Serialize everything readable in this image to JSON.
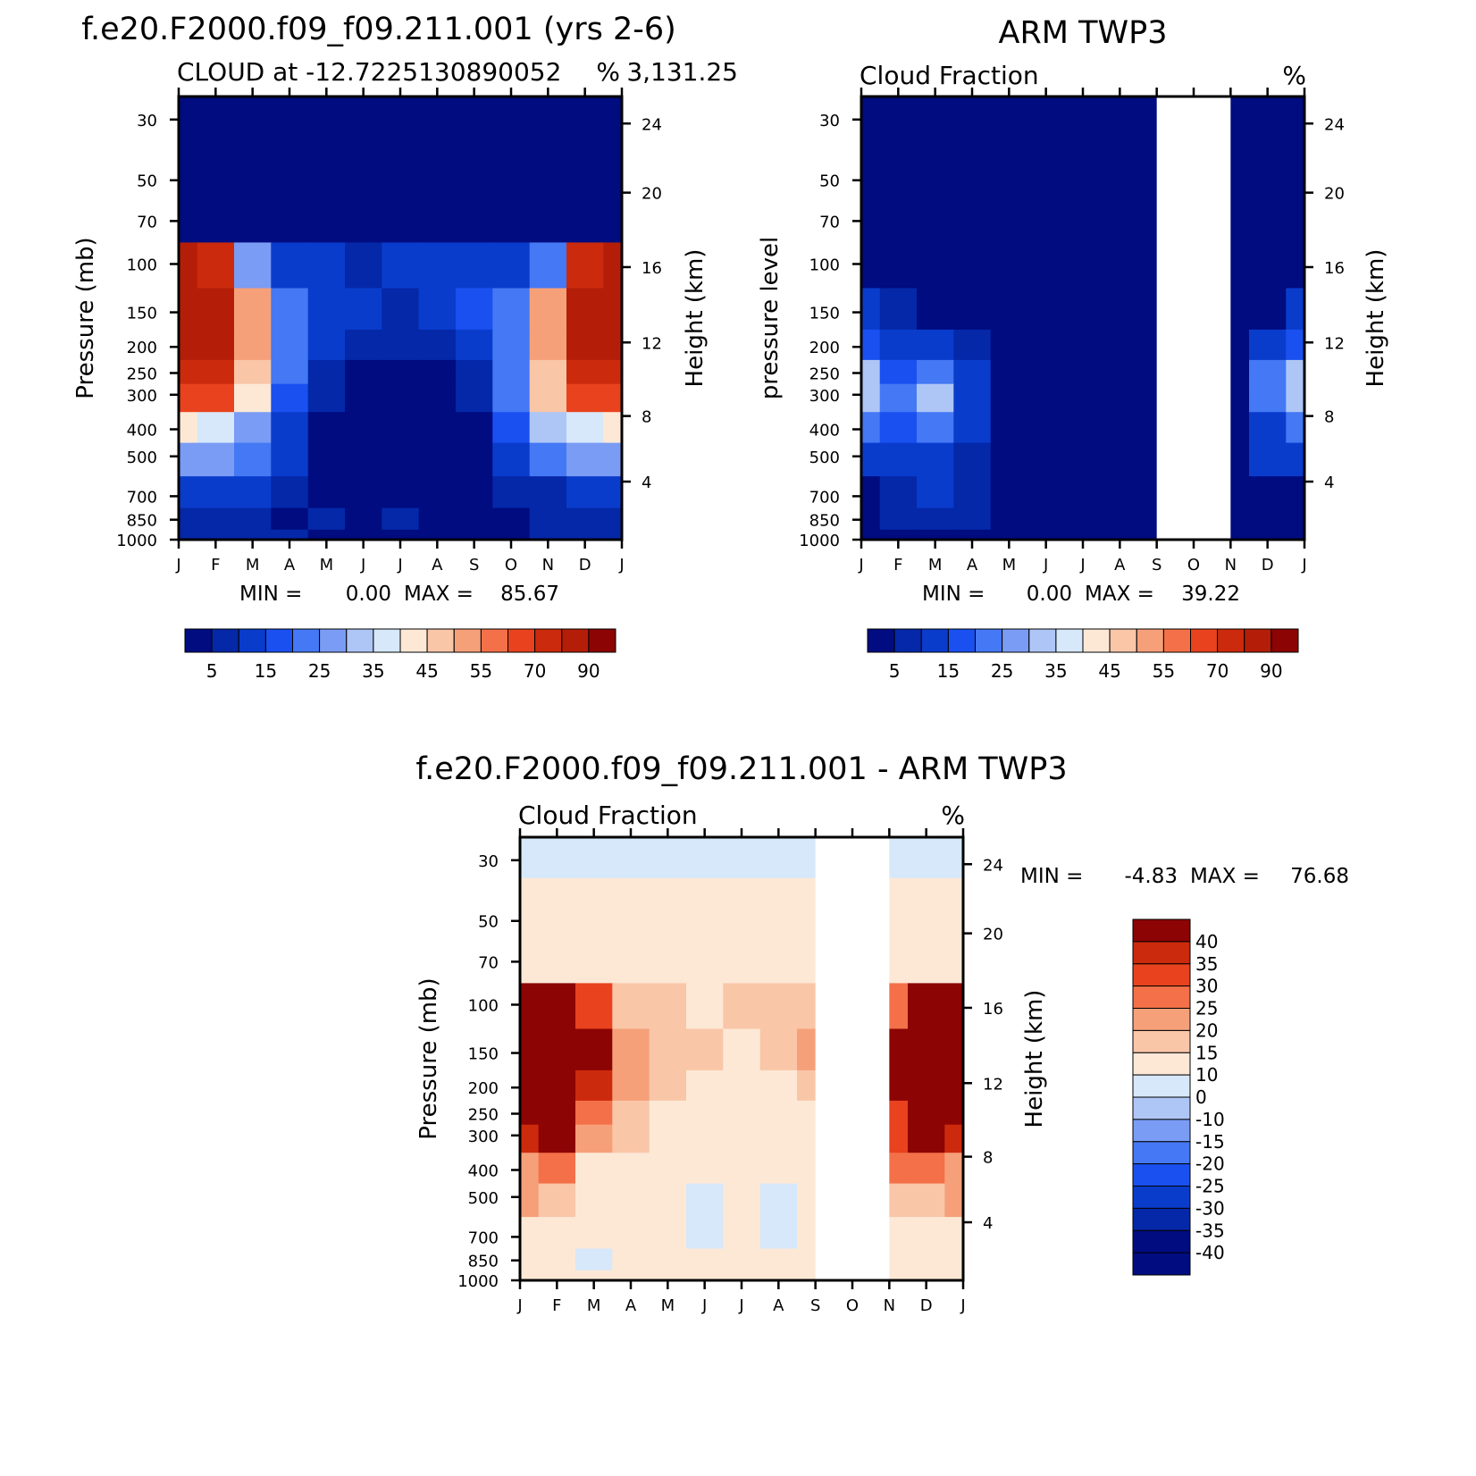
{
  "colors": {
    "seq": [
      "#000c80",
      "#0428a8",
      "#0a3ccc",
      "#1a50f0",
      "#4478f4",
      "#7a9cf4",
      "#aec6f6",
      "#d6e8fa",
      "#fde8d6",
      "#f9c6a8",
      "#f6a07a",
      "#f37048",
      "#e8421e",
      "#cc2a0c",
      "#b41e08",
      "#8c0404"
    ],
    "div": [
      "#000c80",
      "#0428a8",
      "#0a3ccc",
      "#1a50f0",
      "#4478f4",
      "#7a9cf4",
      "#aec6f6",
      "#d6e8fa",
      "#fde8d6",
      "#f9c6a8",
      "#f6a07a",
      "#f37048",
      "#e8421e",
      "#cc2a0c",
      "#8c0404"
    ],
    "missing": "#ffffff"
  },
  "chart_data": [
    {
      "type": "heatmap",
      "title": "f.e20.F2000.f09_f09.211.001 (yrs 2-6)",
      "subtitle_left": "CLOUD at -12.7225130890052",
      "subtitle_right": "3,131.25",
      "subtitle_units": "%",
      "ylabel": "Pressure (mb)",
      "ylabel_right": "Height (km)",
      "x_tick_labels": [
        "J",
        "F",
        "M",
        "A",
        "M",
        "J",
        "J",
        "A",
        "S",
        "O",
        "N",
        "D",
        "J"
      ],
      "y_tick_labels": [
        "30",
        "50",
        "70",
        "100",
        "150",
        "200",
        "250",
        "300",
        "400",
        "500",
        "700",
        "850",
        "1000"
      ],
      "y_right_tick_labels": [
        "24",
        "20",
        "16",
        "12",
        "8",
        "4"
      ],
      "min_label": "MIN =",
      "min_value": "0.00",
      "max_label": "MAX =",
      "max_value": "85.67",
      "colorbar_labels": [
        "5",
        "15",
        "25",
        "35",
        "45",
        "55",
        "70",
        "90"
      ],
      "grid": [
        [
          0,
          0,
          0,
          0,
          0,
          0,
          0,
          0,
          0,
          0,
          0,
          0,
          0
        ],
        [
          0,
          0,
          0,
          0,
          0,
          0,
          0,
          0,
          0,
          0,
          0,
          0,
          0
        ],
        [
          4,
          3,
          2,
          2,
          2,
          2,
          2,
          2,
          2,
          2,
          2,
          3,
          4
        ],
        [
          82,
          74,
          28,
          12,
          12,
          8,
          10,
          12,
          12,
          12,
          24,
          74,
          82
        ],
        [
          85,
          82,
          50,
          22,
          14,
          10,
          8,
          12,
          16,
          22,
          50,
          82,
          85
        ],
        [
          84,
          80,
          52,
          24,
          12,
          6,
          5,
          6,
          12,
          24,
          52,
          80,
          84
        ],
        [
          76,
          70,
          46,
          22,
          8,
          2,
          1,
          2,
          8,
          24,
          48,
          74,
          76
        ],
        [
          68,
          60,
          40,
          18,
          6,
          1,
          0,
          1,
          6,
          22,
          46,
          62,
          68
        ],
        [
          40,
          38,
          28,
          14,
          4,
          0,
          0,
          0,
          4,
          16,
          34,
          38,
          40
        ],
        [
          28,
          26,
          22,
          12,
          4,
          0,
          0,
          0,
          4,
          12,
          22,
          26,
          28
        ],
        [
          12,
          12,
          10,
          8,
          2,
          0,
          0,
          0,
          2,
          6,
          8,
          12,
          12
        ],
        [
          8,
          8,
          6,
          4,
          6,
          4,
          6,
          4,
          4,
          4,
          6,
          8,
          8
        ],
        [
          8,
          8,
          8,
          6,
          4,
          4,
          4,
          4,
          4,
          4,
          6,
          8,
          8
        ]
      ]
    },
    {
      "type": "heatmap",
      "title": "ARM TWP3",
      "subtitle_left": "Cloud Fraction",
      "subtitle_units": "%",
      "ylabel": "pressure level",
      "ylabel_right": "Height (km)",
      "x_tick_labels": [
        "J",
        "F",
        "M",
        "A",
        "M",
        "J",
        "J",
        "A",
        "S",
        "O",
        "N",
        "D",
        "J"
      ],
      "y_tick_labels": [
        "30",
        "50",
        "70",
        "100",
        "150",
        "200",
        "250",
        "300",
        "400",
        "500",
        "700",
        "850",
        "1000"
      ],
      "y_right_tick_labels": [
        "24",
        "20",
        "16",
        "12",
        "8",
        "4"
      ],
      "min_label": "MIN =",
      "min_value": "0.00",
      "max_label": "MAX =",
      "max_value": "39.22",
      "missing_months": [
        "S",
        "O"
      ],
      "colorbar_labels": [
        "5",
        "15",
        "25",
        "35",
        "45",
        "55",
        "70",
        "90"
      ],
      "grid": [
        [
          0,
          0,
          0,
          0,
          0,
          0,
          0,
          0,
          0,
          0,
          0,
          0,
          0
        ],
        [
          0,
          0,
          0,
          0,
          0,
          0,
          0,
          0,
          0,
          0,
          0,
          0,
          0
        ],
        [
          0,
          0,
          0,
          0,
          0,
          0,
          0,
          0,
          0,
          0,
          0,
          0,
          0
        ],
        [
          0,
          0,
          0,
          0,
          0,
          0,
          0,
          0,
          0,
          0,
          0,
          0,
          0
        ],
        [
          10,
          6,
          4,
          2,
          0,
          0,
          0,
          0,
          0,
          0,
          0,
          4,
          10
        ],
        [
          18,
          14,
          14,
          6,
          0,
          0,
          0,
          0,
          0,
          0,
          0,
          14,
          18
        ],
        [
          30,
          18,
          24,
          12,
          2,
          0,
          0,
          0,
          0,
          0,
          0,
          20,
          30
        ],
        [
          32,
          20,
          34,
          14,
          2,
          0,
          0,
          0,
          0,
          0,
          0,
          22,
          32
        ],
        [
          22,
          16,
          22,
          10,
          2,
          0,
          0,
          0,
          0,
          0,
          0,
          14,
          22
        ],
        [
          12,
          10,
          14,
          8,
          2,
          0,
          0,
          0,
          0,
          0,
          0,
          10,
          12
        ],
        [
          4,
          8,
          10,
          6,
          2,
          0,
          0,
          0,
          0,
          0,
          0,
          4,
          4
        ],
        [
          4,
          6,
          8,
          6,
          4,
          2,
          0,
          0,
          0,
          0,
          0,
          4,
          4
        ],
        [
          2,
          2,
          2,
          2,
          0,
          0,
          0,
          0,
          0,
          0,
          0,
          2,
          2
        ]
      ]
    },
    {
      "type": "heatmap",
      "title": "f.e20.F2000.f09_f09.211.001 - ARM TWP3",
      "subtitle_left": "Cloud Fraction",
      "subtitle_units": "%",
      "ylabel": "Pressure (mb)",
      "ylabel_right": "Height (km)",
      "x_tick_labels": [
        "J",
        "F",
        "M",
        "A",
        "M",
        "J",
        "J",
        "A",
        "S",
        "O",
        "N",
        "D",
        "J"
      ],
      "y_tick_labels": [
        "30",
        "50",
        "70",
        "100",
        "150",
        "200",
        "250",
        "300",
        "400",
        "500",
        "700",
        "850",
        "1000"
      ],
      "y_right_tick_labels": [
        "24",
        "20",
        "16",
        "12",
        "8",
        "4"
      ],
      "min_label": "MIN =",
      "min_value": "-4.83",
      "max_label": "MAX =",
      "max_value": "76.68",
      "missing_months": [
        "S",
        "O"
      ],
      "colorbar_labels": [
        "40",
        "35",
        "30",
        "25",
        "20",
        "15",
        "10",
        "0",
        "-10",
        "-15",
        "-20",
        "-25",
        "-30",
        "-35",
        "-40"
      ],
      "grid": [
        [
          -1,
          -1,
          -1,
          -1,
          -1,
          -1,
          -1,
          -1,
          -1,
          -1,
          -1,
          -1,
          -1
        ],
        [
          2,
          2,
          2,
          2,
          2,
          2,
          2,
          2,
          2,
          2,
          2,
          2,
          2
        ],
        [
          4,
          3,
          2,
          2,
          2,
          2,
          2,
          2,
          2,
          2,
          2,
          3,
          4
        ],
        [
          76,
          74,
          26,
          12,
          12,
          8,
          10,
          12,
          14,
          14,
          20,
          74,
          76
        ],
        [
          70,
          72,
          40,
          18,
          14,
          10,
          8,
          12,
          18,
          22,
          40,
          72,
          70
        ],
        [
          64,
          58,
          34,
          18,
          10,
          6,
          4,
          6,
          14,
          20,
          36,
          58,
          64
        ],
        [
          40,
          48,
          22,
          12,
          8,
          2,
          1,
          2,
          8,
          10,
          28,
          48,
          40
        ],
        [
          32,
          36,
          16,
          12,
          4,
          1,
          0,
          1,
          4,
          6,
          26,
          36,
          32
        ],
        [
          18,
          22,
          8,
          8,
          2,
          0,
          0,
          0,
          2,
          4,
          22,
          22,
          18
        ],
        [
          16,
          14,
          8,
          8,
          2,
          -1,
          0,
          -1,
          2,
          4,
          14,
          14,
          16
        ],
        [
          4,
          4,
          0,
          4,
          0,
          -2,
          0,
          -2,
          0,
          2,
          4,
          4,
          4
        ],
        [
          4,
          2,
          -2,
          2,
          2,
          2,
          8,
          4,
          2,
          2,
          4,
          4,
          4
        ],
        [
          6,
          4,
          0,
          4,
          4,
          4,
          4,
          4,
          2,
          2,
          4,
          6,
          6
        ]
      ]
    }
  ]
}
